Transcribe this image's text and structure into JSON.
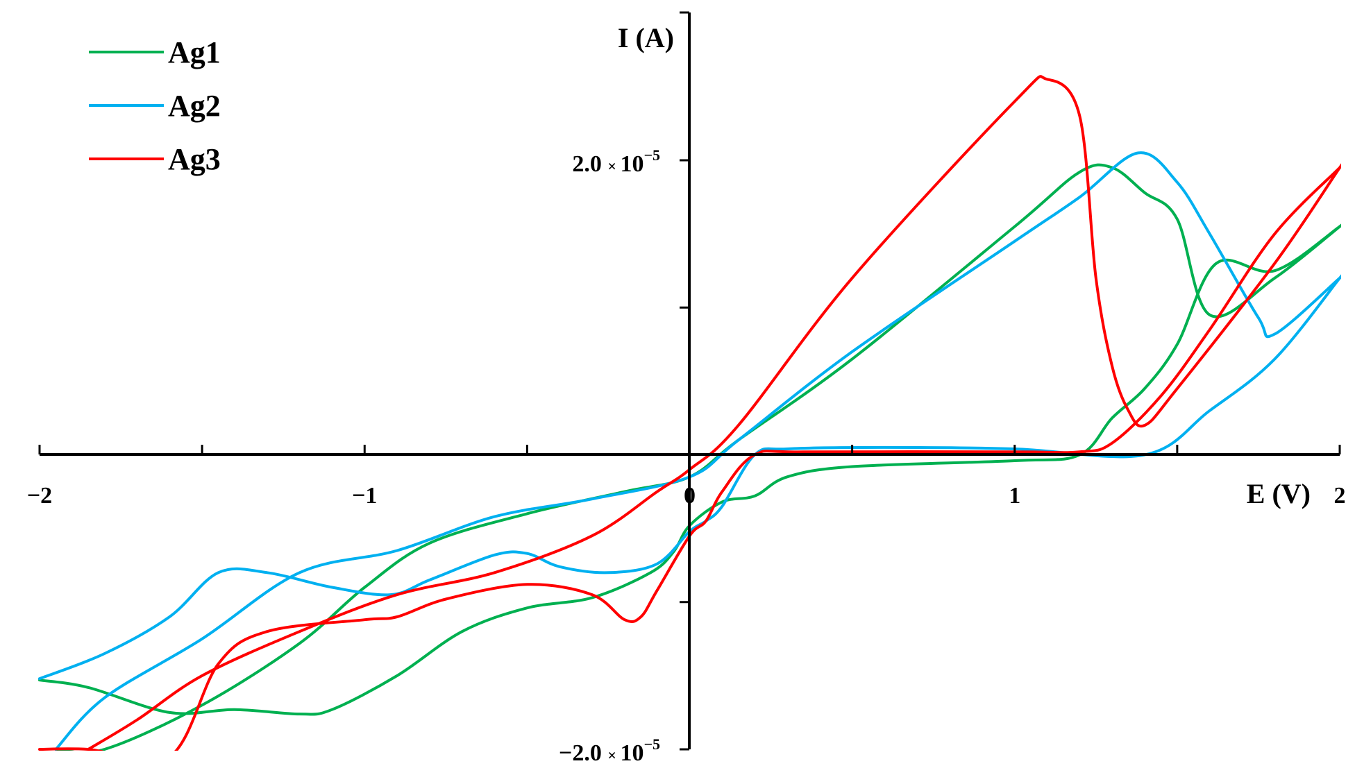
{
  "chart_data": {
    "type": "line",
    "xlabel": "E (V)",
    "ylabel": "I (A)",
    "xlim": [
      -2,
      2
    ],
    "ylim": [
      -2e-05,
      2e-05
    ],
    "x_ticks": [
      {
        "value": -2,
        "label": "−2"
      },
      {
        "value": -1,
        "label": "−1"
      },
      {
        "value": 0,
        "label": "0"
      },
      {
        "value": 1,
        "label": "1"
      },
      {
        "value": 2,
        "label": "2"
      }
    ],
    "y_ticks": [
      {
        "value": 2e-05,
        "mantissa": "2.0",
        "times": "×",
        "base": "10",
        "exponent": "−5"
      },
      {
        "value": 1e-05,
        "mantissa": "",
        "times": "",
        "base": "",
        "exponent": ""
      },
      {
        "value": -1e-05,
        "mantissa": "",
        "times": "",
        "base": "",
        "exponent": ""
      },
      {
        "value": -2e-05,
        "mantissa": "−2.0",
        "times": "×",
        "base": "10",
        "exponent": "−5"
      }
    ],
    "legend_position": "top-left",
    "grid": false,
    "series": [
      {
        "name": "Ag1",
        "color": "#00b050",
        "x": [
          -2.0,
          -1.85,
          -1.6,
          -1.4,
          -1.2,
          -1.1,
          -0.9,
          -0.7,
          -0.5,
          -0.3,
          -0.12,
          -0.05,
          0.0,
          0.1,
          0.2,
          0.3,
          0.5,
          1.0,
          1.2,
          1.3,
          1.4,
          1.5,
          1.62,
          1.8,
          2.0,
          2.0,
          1.8,
          1.6,
          1.5,
          1.4,
          1.3,
          1.2,
          1.0,
          0.5,
          0.15,
          0.0,
          -0.2,
          -0.5,
          -0.8,
          -1.0,
          -1.2,
          -1.5,
          -1.8,
          -1.95
        ],
        "y": [
          -1.53e-05,
          -1.58e-05,
          -1.75e-05,
          -1.73e-05,
          -1.76e-05,
          -1.73e-05,
          -1.5e-05,
          -1.2e-05,
          -1.04e-05,
          -9.7e-06,
          -8e-06,
          -6.6e-06,
          -4.8e-06,
          -3.2e-06,
          -2.8e-06,
          -1.5e-06,
          -8e-07,
          -4e-07,
          0.0,
          2.5e-06,
          4.5e-06,
          7.5e-06,
          1.3e-05,
          1.25e-05,
          1.55e-05,
          1.55e-05,
          1.2e-05,
          9.5e-06,
          1.6e-05,
          1.78e-05,
          1.95e-05,
          1.92e-05,
          1.55e-05,
          6.5e-06,
          1e-06,
          -1.5e-06,
          -2.5e-06,
          -4e-06,
          -6e-06,
          -9e-06,
          -1.28e-05,
          -1.7e-05,
          -2e-05,
          -2e-05
        ]
      },
      {
        "name": "Ag2",
        "color": "#00b0f0",
        "x": [
          -2.0,
          -1.8,
          -1.6,
          -1.45,
          -1.3,
          -1.1,
          -0.92,
          -0.8,
          -0.6,
          -0.5,
          -0.4,
          -0.25,
          -0.1,
          0.0,
          0.05,
          0.1,
          0.2,
          0.3,
          0.6,
          1.0,
          1.4,
          1.6,
          1.8,
          2.0,
          2.0,
          1.8,
          1.75,
          1.6,
          1.5,
          1.38,
          1.2,
          1.0,
          0.5,
          0.15,
          0.0,
          -0.3,
          -0.6,
          -0.9,
          -1.2,
          -1.5,
          -1.8,
          -1.95
        ],
        "y": [
          -1.52e-05,
          -1.35e-05,
          -1.1e-05,
          -8e-06,
          -8e-06,
          -9e-06,
          -9.5e-06,
          -8.5e-06,
          -6.8e-06,
          -6.7e-06,
          -7.6e-06,
          -8e-06,
          -7.4e-06,
          -5.2e-06,
          -4.5e-06,
          -3.5e-06,
          0.0,
          4e-07,
          5e-07,
          4e-07,
          0.0,
          3e-06,
          6.5e-06,
          1.2e-05,
          1.2e-05,
          8.2e-06,
          9.3e-06,
          1.5e-05,
          1.85e-05,
          2.05e-05,
          1.75e-05,
          1.45e-05,
          7e-06,
          1e-06,
          -1.5e-06,
          -3e-06,
          -4.2e-06,
          -6.5e-06,
          -8e-06,
          -1.25e-05,
          -1.65e-05,
          -2e-05
        ]
      },
      {
        "name": "Ag3",
        "color": "#ff0000",
        "x": [
          -2.0,
          -1.85,
          -1.6,
          -1.45,
          -1.3,
          -1.0,
          -0.9,
          -0.75,
          -0.5,
          -0.3,
          -0.2,
          -0.15,
          -0.1,
          0.0,
          0.05,
          0.1,
          0.2,
          0.35,
          1.0,
          1.2,
          1.3,
          1.45,
          1.6,
          1.8,
          2.0,
          2.0,
          1.8,
          1.5,
          1.4,
          1.35,
          1.3,
          1.25,
          1.2,
          1.1,
          1.0,
          0.5,
          0.15,
          0.0,
          -0.1,
          -0.3,
          -0.6,
          -0.9,
          -1.2,
          -1.5,
          -1.7,
          -1.85
        ],
        "y": [
          -2e-05,
          -2e-05,
          -2.05e-05,
          -1.42e-05,
          -1.2e-05,
          -1.12e-05,
          -1.1e-05,
          -9.8e-06,
          -8.8e-06,
          -9.5e-06,
          -1.12e-05,
          -1.1e-05,
          -9.2e-06,
          -5.5e-06,
          -4.5e-06,
          -2.5e-06,
          0.0,
          2e-07,
          2e-07,
          2e-07,
          8e-07,
          4e-06,
          8.5e-06,
          1.5e-05,
          1.95e-05,
          1.95e-05,
          1.3e-05,
          4.5e-06,
          2e-06,
          3e-06,
          6e-06,
          1.2e-05,
          2.3e-05,
          2.55e-05,
          2.4e-05,
          1.2e-05,
          2e-06,
          -1e-06,
          -2.5e-06,
          -5.5e-06,
          -8e-06,
          -9.5e-06,
          -1.2e-05,
          -1.5e-05,
          -1.8e-05,
          -2e-05
        ]
      }
    ]
  }
}
